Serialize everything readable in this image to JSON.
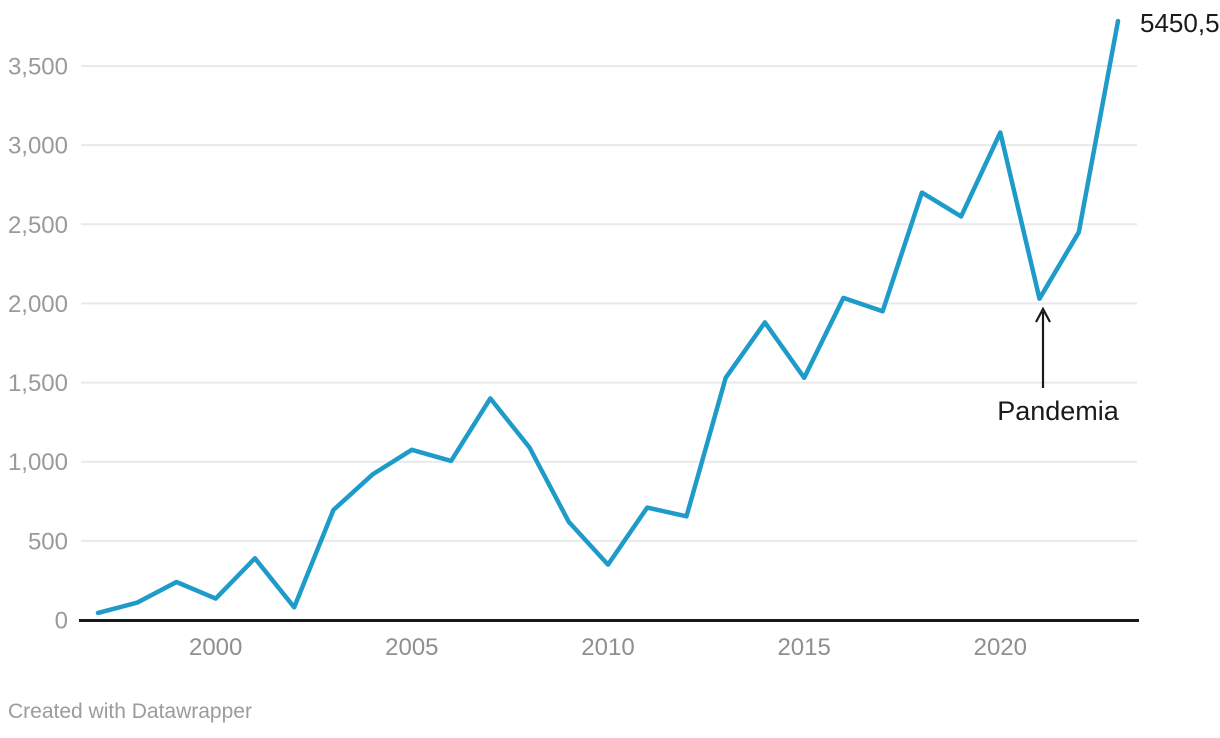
{
  "chart_data": {
    "type": "line",
    "x": [
      1997,
      1998,
      1999,
      2000,
      2001,
      2002,
      2003,
      2004,
      2005,
      2006,
      2007,
      2008,
      2009,
      2010,
      2011,
      2012,
      2013,
      2014,
      2015,
      2016,
      2017,
      2018,
      2019,
      2020,
      2021,
      2022,
      2023
    ],
    "values": [
      45,
      110,
      240,
      135,
      390,
      80,
      695,
      920,
      1075,
      1005,
      1400,
      1090,
      620,
      350,
      710,
      655,
      1530,
      1880,
      1530,
      2035,
      1950,
      2700,
      2550,
      3080,
      2030,
      2450,
      5450.5
    ],
    "title": "",
    "xlabel": "",
    "ylabel": "",
    "ylim": [
      0,
      3500
    ],
    "grid": true,
    "legend_position": "none",
    "line_color": "#1e9bc9",
    "end_label": "5450,5",
    "annotation": {
      "text": "Pandemia",
      "target_year": 2021,
      "target_value": 2030
    },
    "x_ticks": [
      {
        "value": 2000,
        "label": "2000"
      },
      {
        "value": 2005,
        "label": "2005"
      },
      {
        "value": 2010,
        "label": "2010"
      },
      {
        "value": 2015,
        "label": "2015"
      },
      {
        "value": 2020,
        "label": "2020"
      }
    ],
    "y_ticks": [
      {
        "value": 0,
        "label": "0"
      },
      {
        "value": 500,
        "label": "500"
      },
      {
        "value": 1000,
        "label": "1,000"
      },
      {
        "value": 1500,
        "label": "1,500"
      },
      {
        "value": 2000,
        "label": "2,000"
      },
      {
        "value": 2500,
        "label": "2,500"
      },
      {
        "value": 3000,
        "label": "3,000"
      },
      {
        "value": 3500,
        "label": "3,500"
      }
    ]
  },
  "colors": {
    "line": "#1e9bc9",
    "gridline": "#e9e9e9",
    "axis": "#191919",
    "y_tick_text": "#9a9a9a",
    "x_tick_text": "#8f8f8f",
    "annotation_text": "#1a1a1a",
    "attribution_text": "#9b9b9b"
  },
  "footer": {
    "attribution": "Created with Datawrapper"
  }
}
